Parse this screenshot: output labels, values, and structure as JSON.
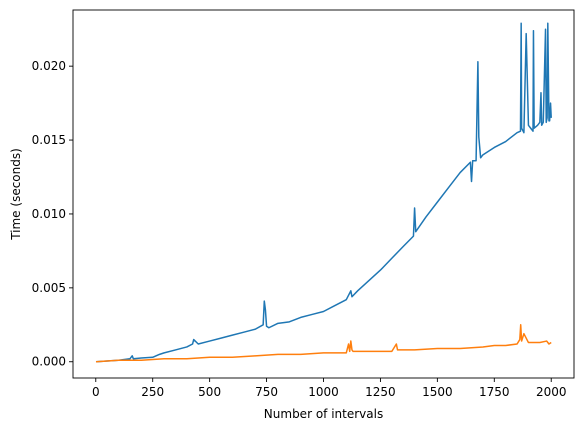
{
  "chart_data": {
    "type": "line",
    "title": "",
    "xlabel": "Number of intervals",
    "ylabel": "Time (seconds)",
    "xlim": [
      -100,
      2100
    ],
    "ylim": [
      -0.0011,
      0.0238
    ],
    "x_ticks": [
      0,
      250,
      500,
      750,
      1000,
      1250,
      1500,
      1750,
      2000
    ],
    "y_ticks": [
      0.0,
      0.005,
      0.01,
      0.015,
      0.02
    ],
    "x_tick_labels": [
      "0",
      "250",
      "500",
      "750",
      "1000",
      "1250",
      "1500",
      "1750",
      "2000"
    ],
    "y_tick_labels": [
      "0.000",
      "0.005",
      "0.010",
      "0.015",
      "0.020"
    ],
    "grid": false,
    "legend": false,
    "series": [
      {
        "color": "#1f77b4",
        "x": [
          1,
          50,
          100,
          150,
          160,
          165,
          200,
          250,
          280,
          300,
          350,
          400,
          425,
          430,
          450,
          500,
          550,
          600,
          650,
          700,
          735,
          740,
          745,
          750,
          760,
          800,
          850,
          900,
          950,
          1000,
          1050,
          1100,
          1120,
          1125,
          1150,
          1200,
          1250,
          1300,
          1350,
          1395,
          1400,
          1405,
          1450,
          1500,
          1550,
          1600,
          1645,
          1650,
          1655,
          1670,
          1678,
          1682,
          1690,
          1700,
          1750,
          1800,
          1850,
          1865,
          1868,
          1870,
          1880,
          1890,
          1900,
          1910,
          1920,
          1922,
          1925,
          1940,
          1950,
          1955,
          1958,
          1965,
          1975,
          1978,
          1982,
          1985,
          1990,
          1993,
          1997,
          2000
        ],
        "y": [
          0.0,
          5e-05,
          0.0001,
          0.0002,
          0.0004,
          0.0002,
          0.00025,
          0.0003,
          0.0005,
          0.0006,
          0.0008,
          0.001,
          0.0012,
          0.0015,
          0.0012,
          0.0014,
          0.0016,
          0.0018,
          0.002,
          0.0022,
          0.0025,
          0.0041,
          0.0035,
          0.0024,
          0.0023,
          0.0026,
          0.0027,
          0.003,
          0.0032,
          0.0034,
          0.0038,
          0.0042,
          0.0048,
          0.0044,
          0.0048,
          0.0055,
          0.0062,
          0.007,
          0.0078,
          0.0085,
          0.0104,
          0.0088,
          0.0098,
          0.0108,
          0.0118,
          0.0128,
          0.0135,
          0.0122,
          0.0136,
          0.0136,
          0.0203,
          0.0152,
          0.0138,
          0.014,
          0.0145,
          0.0149,
          0.0155,
          0.0156,
          0.0229,
          0.0158,
          0.0155,
          0.0222,
          0.016,
          0.0158,
          0.0156,
          0.0224,
          0.0158,
          0.016,
          0.0162,
          0.0182,
          0.016,
          0.0162,
          0.0225,
          0.0162,
          0.0165,
          0.0229,
          0.0163,
          0.0163,
          0.0175,
          0.0165
        ]
      },
      {
        "color": "#ff7f0e",
        "x": [
          1,
          100,
          200,
          300,
          400,
          500,
          600,
          700,
          800,
          900,
          1000,
          1100,
          1110,
          1115,
          1120,
          1125,
          1130,
          1200,
          1300,
          1320,
          1325,
          1330,
          1400,
          1500,
          1600,
          1700,
          1750,
          1800,
          1850,
          1862,
          1866,
          1870,
          1880,
          1900,
          1950,
          1980,
          1990,
          2000
        ],
        "y": [
          0.0,
          0.0001,
          0.0001,
          0.0002,
          0.0002,
          0.0003,
          0.0003,
          0.0004,
          0.0005,
          0.0005,
          0.0006,
          0.0006,
          0.0012,
          0.0007,
          0.0014,
          0.0008,
          0.0007,
          0.0007,
          0.0007,
          0.0012,
          0.0008,
          0.0008,
          0.0008,
          0.0009,
          0.0009,
          0.001,
          0.0011,
          0.0011,
          0.0012,
          0.0015,
          0.0025,
          0.0014,
          0.0019,
          0.0013,
          0.0013,
          0.0014,
          0.0012,
          0.0013
        ]
      }
    ]
  }
}
